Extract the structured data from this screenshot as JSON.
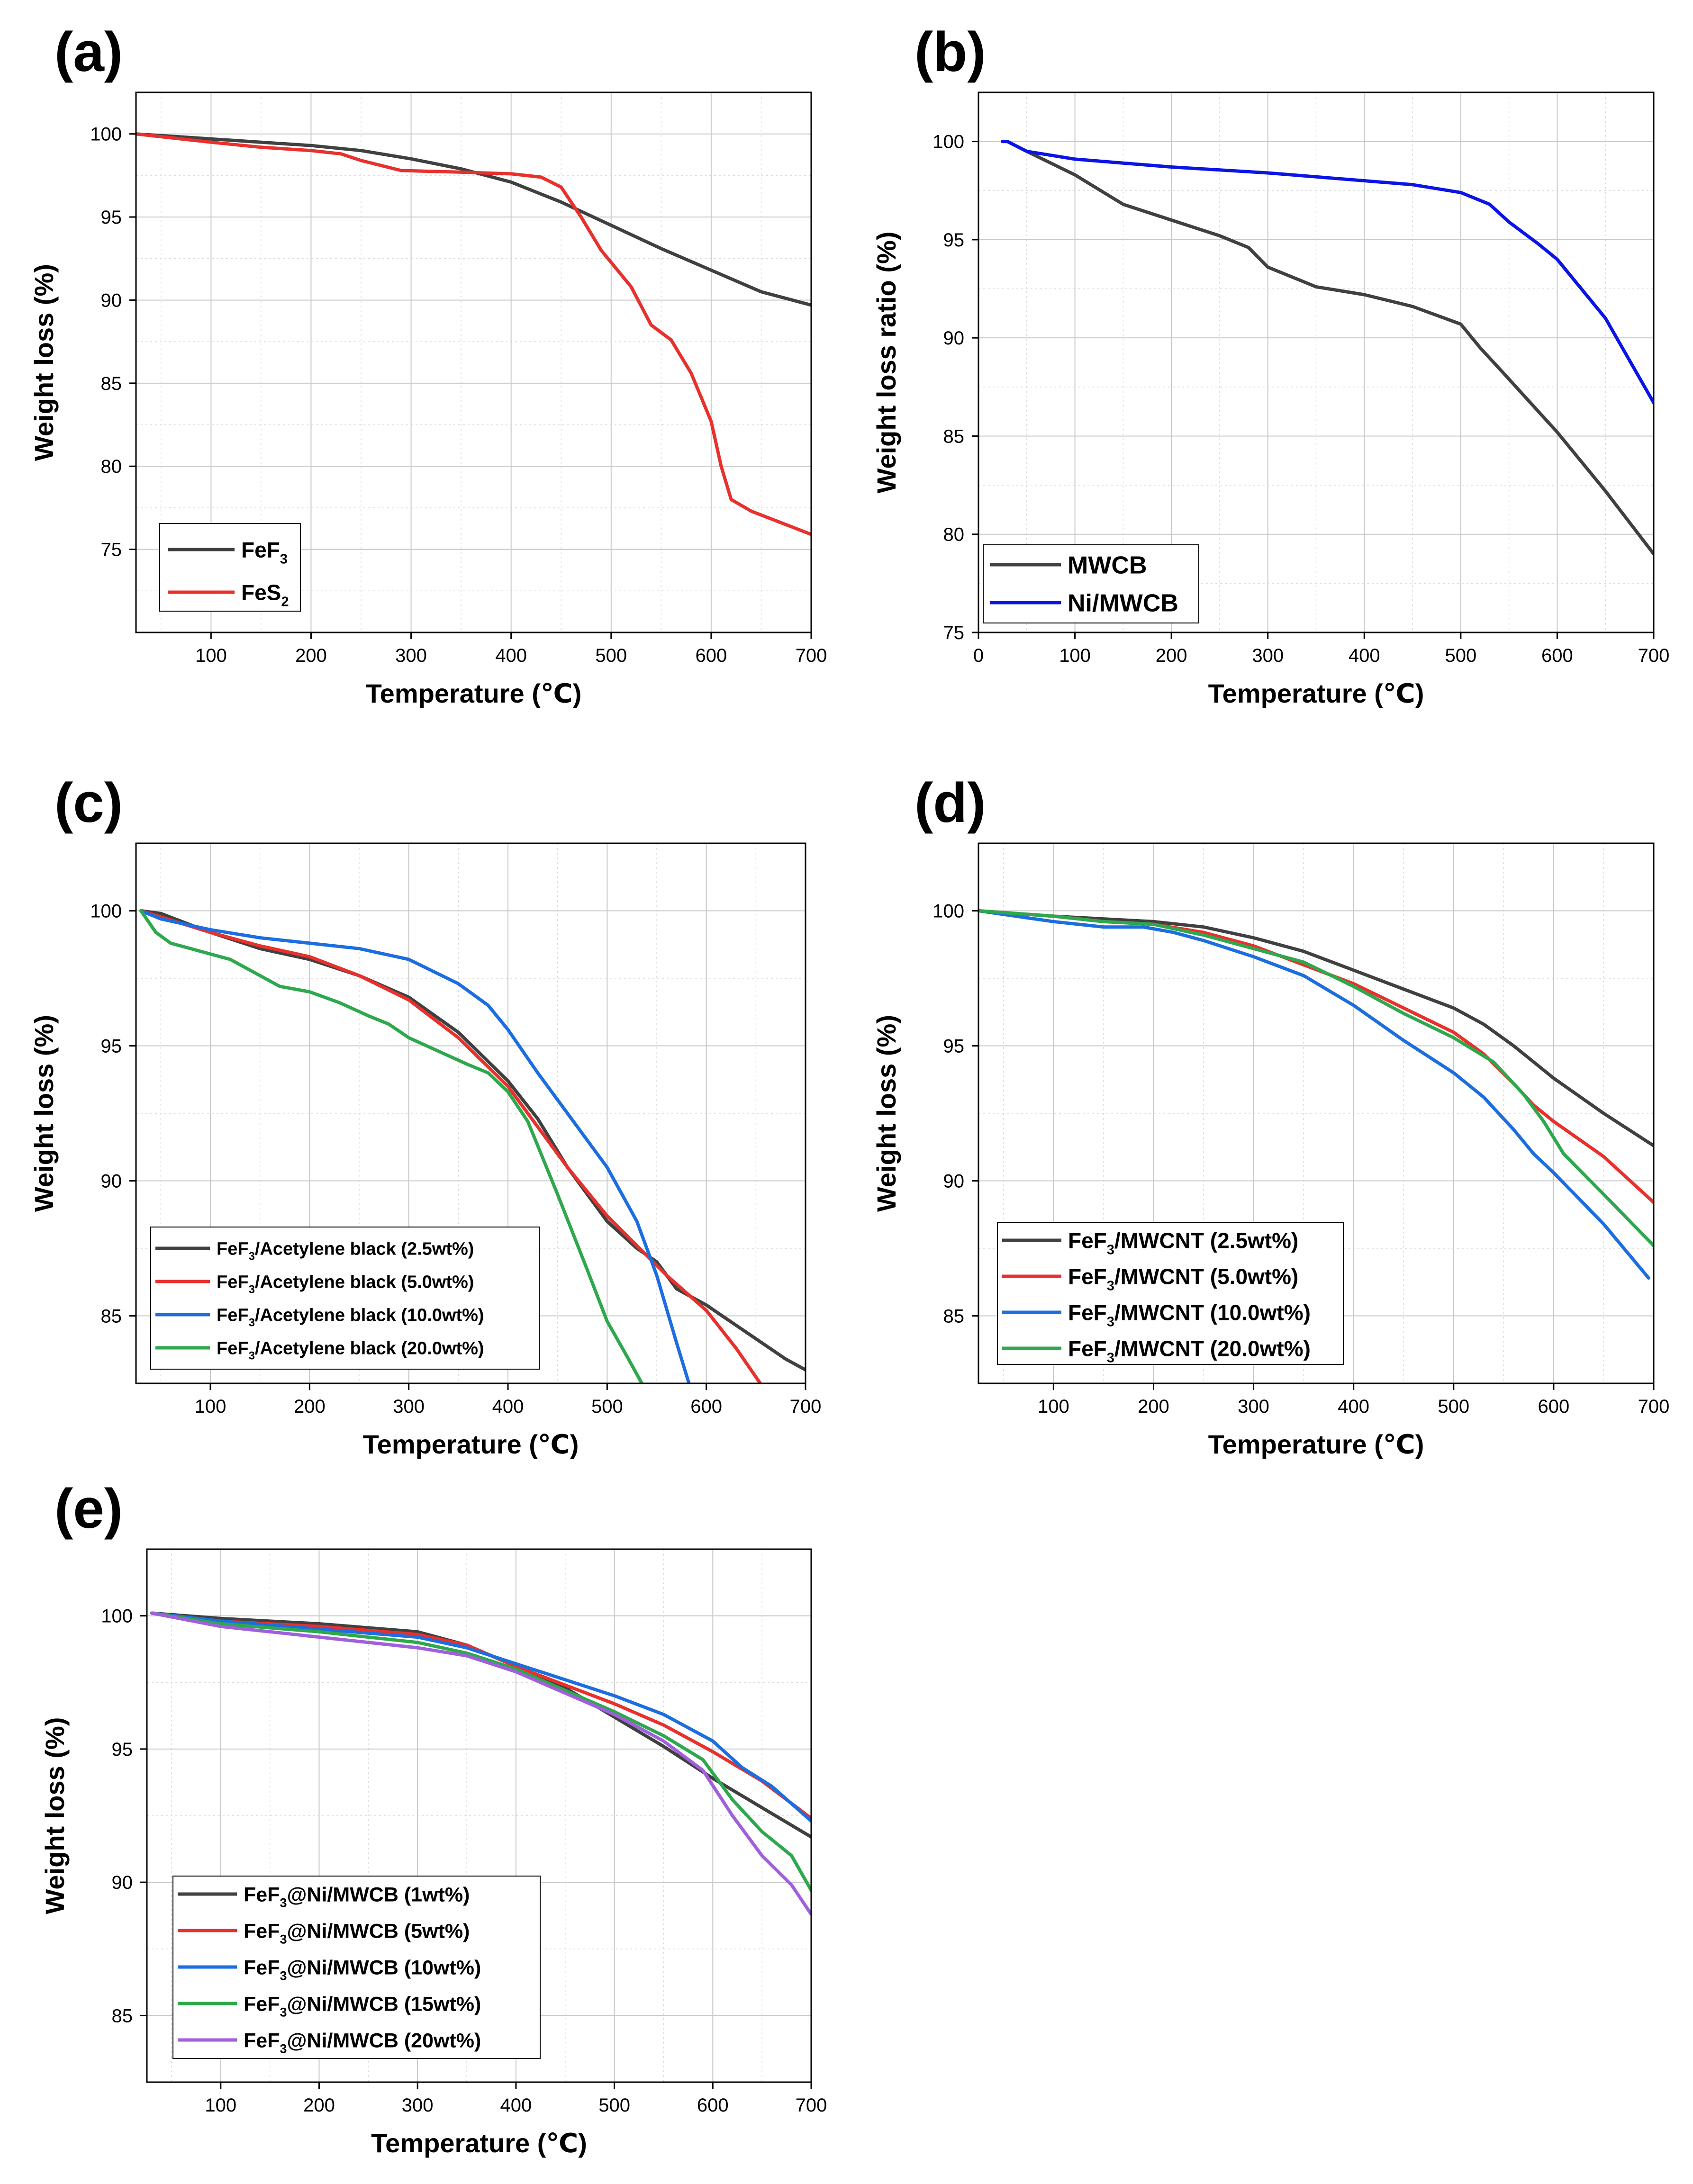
{
  "chart_data": [
    {
      "id": "a",
      "type": "line",
      "panel_label": "(a)",
      "xlabel": "Temperature (℃)",
      "ylabel": "Weight loss (%)",
      "xlim": [
        25,
        700
      ],
      "ylim": [
        70,
        102.5
      ],
      "xticks": [
        100,
        200,
        300,
        400,
        500,
        600,
        700
      ],
      "yticks": [
        75,
        80,
        85,
        90,
        95,
        100
      ],
      "grid": true,
      "legend_position": "bottom-left",
      "series": [
        {
          "name": "FeF3",
          "label_base": "FeF",
          "label_sub": "3",
          "label_tail": "",
          "color": "#404040",
          "x": [
            25,
            100,
            200,
            250,
            300,
            350,
            400,
            450,
            500,
            550,
            600,
            650,
            700
          ],
          "y": [
            100,
            99.7,
            99.3,
            99.0,
            98.5,
            97.9,
            97.1,
            95.9,
            94.5,
            93.1,
            91.8,
            90.5,
            89.7
          ]
        },
        {
          "name": "FeS2",
          "label_base": "FeS",
          "label_sub": "2",
          "label_tail": "",
          "color": "#e8302c",
          "x": [
            25,
            100,
            150,
            200,
            230,
            250,
            290,
            350,
            400,
            430,
            450,
            470,
            490,
            520,
            540,
            560,
            580,
            600,
            610,
            620,
            640,
            670,
            700
          ],
          "y": [
            100,
            99.5,
            99.2,
            99.0,
            98.8,
            98.4,
            97.8,
            97.7,
            97.6,
            97.4,
            96.8,
            95.0,
            93.0,
            90.8,
            88.5,
            87.6,
            85.6,
            82.7,
            80.0,
            78.0,
            77.3,
            76.6,
            75.9
          ]
        }
      ]
    },
    {
      "id": "b",
      "type": "line",
      "panel_label": "(b)",
      "xlabel": "Temperature (℃)",
      "ylabel": "Weight loss ratio (%)",
      "xlim": [
        0,
        700
      ],
      "ylim": [
        75,
        102.5
      ],
      "xticks": [
        0,
        100,
        200,
        300,
        400,
        500,
        600,
        700
      ],
      "yticks": [
        75,
        80,
        85,
        90,
        95,
        100
      ],
      "grid": true,
      "legend_position": "bottom-left",
      "series": [
        {
          "name": "MWCB",
          "label_base": "MWCB",
          "label_sub": "",
          "label_tail": "",
          "color": "#404040",
          "x": [
            25,
            30,
            50,
            100,
            150,
            200,
            250,
            280,
            300,
            350,
            400,
            450,
            500,
            520,
            550,
            600,
            650,
            700
          ],
          "y": [
            100,
            100,
            99.5,
            98.3,
            96.8,
            96.0,
            95.2,
            94.6,
            93.6,
            92.6,
            92.2,
            91.6,
            90.7,
            89.5,
            87.9,
            85.2,
            82.2,
            79.0
          ]
        },
        {
          "name": "Ni/MWCB",
          "label_base": "Ni/MWCB",
          "label_sub": "",
          "label_tail": "",
          "color": "#0a14e6",
          "x": [
            25,
            30,
            50,
            100,
            150,
            200,
            300,
            400,
            450,
            500,
            530,
            550,
            580,
            600,
            650,
            700
          ],
          "y": [
            100,
            100,
            99.5,
            99.1,
            98.9,
            98.7,
            98.4,
            98.0,
            97.8,
            97.4,
            96.8,
            95.9,
            94.8,
            94.0,
            91.0,
            86.7
          ]
        }
      ]
    },
    {
      "id": "c",
      "type": "line",
      "panel_label": "(c)",
      "xlabel": "Temperature (℃)",
      "ylabel": "Weight loss (%)",
      "xlim": [
        25,
        700
      ],
      "ylim": [
        82.5,
        102.5
      ],
      "xticks": [
        100,
        200,
        300,
        400,
        500,
        600,
        700
      ],
      "yticks": [
        85,
        90,
        95,
        100
      ],
      "grid": true,
      "legend_position": "bottom-left",
      "series": [
        {
          "name": "FeF3/Acetylene black (2.5wt%)",
          "label_base": "FeF",
          "label_sub": "3",
          "label_tail": "/Acetylene black (2.5wt%)",
          "color": "#404040",
          "x": [
            30,
            50,
            100,
            150,
            200,
            250,
            300,
            350,
            400,
            430,
            460,
            480,
            500,
            530,
            550,
            570,
            600,
            620,
            640,
            660,
            680,
            700
          ],
          "y": [
            100,
            99.9,
            99.2,
            98.6,
            98.2,
            97.6,
            96.8,
            95.5,
            93.7,
            92.3,
            90.5,
            89.5,
            88.5,
            87.5,
            87.0,
            86.0,
            85.4,
            84.9,
            84.4,
            83.9,
            83.4,
            83.0
          ]
        },
        {
          "name": "FeF3/Acetylene black (5.0wt%)",
          "label_base": "FeF",
          "label_sub": "3",
          "label_tail": "/Acetylene black (5.0wt%)",
          "color": "#e8302c",
          "x": [
            30,
            100,
            150,
            200,
            250,
            300,
            350,
            400,
            430,
            460,
            480,
            500,
            530,
            560,
            600,
            630,
            660
          ],
          "y": [
            100,
            99.2,
            98.7,
            98.3,
            97.6,
            96.7,
            95.3,
            93.5,
            92.0,
            90.5,
            89.6,
            88.7,
            87.6,
            86.5,
            85.2,
            83.8,
            82.2
          ]
        },
        {
          "name": "FeF3/Acetylene black (10.0wt%)",
          "label_base": "FeF",
          "label_sub": "3",
          "label_tail": "/Acetylene black (10.0wt%)",
          "color": "#1c6ee0",
          "x": [
            30,
            50,
            100,
            150,
            200,
            250,
            300,
            350,
            380,
            400,
            430,
            460,
            500,
            530,
            550,
            570,
            585
          ],
          "y": [
            100,
            99.7,
            99.3,
            99.0,
            98.8,
            98.6,
            98.2,
            97.3,
            96.5,
            95.6,
            94.0,
            92.5,
            90.5,
            88.5,
            86.5,
            84.0,
            82.2
          ]
        },
        {
          "name": "FeF3/Acetylene black (20.0wt%)",
          "label_base": "FeF",
          "label_sub": "3",
          "label_tail": "/Acetylene black (20.0wt%)",
          "color": "#2ea84d",
          "x": [
            30,
            45,
            60,
            80,
            100,
            120,
            150,
            170,
            200,
            230,
            260,
            280,
            300,
            330,
            360,
            380,
            400,
            420,
            450,
            480,
            500,
            520,
            535
          ],
          "y": [
            100,
            99.2,
            98.8,
            98.6,
            98.4,
            98.2,
            97.6,
            97.2,
            97.0,
            96.6,
            96.1,
            95.8,
            95.3,
            94.8,
            94.3,
            94.0,
            93.3,
            92.2,
            89.5,
            86.7,
            84.8,
            83.5,
            82.5
          ]
        }
      ]
    },
    {
      "id": "d",
      "type": "line",
      "panel_label": "(d)",
      "xlabel": "Temperature (℃)",
      "ylabel": "Weight loss (%)",
      "xlim": [
        25,
        700
      ],
      "ylim": [
        82.5,
        102.5
      ],
      "xticks": [
        100,
        200,
        300,
        400,
        500,
        600,
        700
      ],
      "yticks": [
        85,
        90,
        95,
        100
      ],
      "grid": true,
      "legend_position": "bottom-left",
      "series": [
        {
          "name": "FeF3/MWCNT (2.5wt%)",
          "label_base": "FeF",
          "label_sub": "3",
          "label_tail": "/MWCNT (2.5wt%)",
          "color": "#404040",
          "x": [
            25,
            100,
            150,
            200,
            250,
            300,
            350,
            400,
            450,
            500,
            530,
            560,
            580,
            600,
            650,
            700
          ],
          "y": [
            100,
            99.8,
            99.7,
            99.6,
            99.4,
            99.0,
            98.5,
            97.8,
            97.1,
            96.4,
            95.8,
            95.0,
            94.4,
            93.8,
            92.5,
            91.3
          ]
        },
        {
          "name": "FeF3/MWCNT (5.0wt%)",
          "label_base": "FeF",
          "label_sub": "3",
          "label_tail": "/MWCNT (5.0wt%)",
          "color": "#e8302c",
          "x": [
            25,
            100,
            150,
            200,
            250,
            300,
            350,
            400,
            450,
            500,
            530,
            560,
            580,
            600,
            650,
            700
          ],
          "y": [
            100,
            99.8,
            99.6,
            99.5,
            99.2,
            98.7,
            98.0,
            97.3,
            96.4,
            95.5,
            94.7,
            93.6,
            92.8,
            92.2,
            90.9,
            89.2
          ]
        },
        {
          "name": "FeF3/MWCNT (10.0wt%)",
          "label_base": "FeF",
          "label_sub": "3",
          "label_tail": "/MWCNT (10.0wt%)",
          "color": "#1c6ee0",
          "x": [
            25,
            100,
            150,
            190,
            220,
            250,
            300,
            350,
            400,
            450,
            500,
            530,
            560,
            580,
            600,
            650,
            695
          ],
          "y": [
            100,
            99.6,
            99.4,
            99.4,
            99.2,
            98.9,
            98.3,
            97.6,
            96.5,
            95.2,
            94.0,
            93.1,
            91.9,
            91.0,
            90.3,
            88.4,
            86.4
          ]
        },
        {
          "name": "FeF3/MWCNT (20.0wt%)",
          "label_base": "FeF",
          "label_sub": "3",
          "label_tail": "/MWCNT (20.0wt%)",
          "color": "#2ea84d",
          "x": [
            25,
            100,
            150,
            200,
            250,
            300,
            350,
            400,
            450,
            500,
            540,
            570,
            590,
            610,
            650,
            700
          ],
          "y": [
            100,
            99.8,
            99.6,
            99.5,
            99.1,
            98.6,
            98.1,
            97.2,
            96.2,
            95.3,
            94.4,
            93.2,
            92.2,
            91.0,
            89.5,
            87.6
          ]
        }
      ]
    },
    {
      "id": "e",
      "type": "line",
      "panel_label": "(e)",
      "xlabel": "Temperature (℃)",
      "ylabel": "Weight loss (%)",
      "xlim": [
        25,
        700
      ],
      "ylim": [
        82.5,
        102.5
      ],
      "xticks": [
        100,
        200,
        300,
        400,
        500,
        600,
        700
      ],
      "yticks": [
        85,
        90,
        95,
        100
      ],
      "grid": true,
      "legend_position": "bottom-left",
      "series": [
        {
          "name": "FeF3@Ni/MWCB (1wt%)",
          "label_base": "FeF",
          "label_sub": "3",
          "label_tail": "@Ni/MWCB (1wt%)",
          "color": "#404040",
          "x": [
            30,
            100,
            200,
            300,
            350,
            400,
            450,
            500,
            550,
            600,
            650,
            700
          ],
          "y": [
            100.1,
            99.9,
            99.7,
            99.4,
            98.9,
            98.1,
            97.3,
            96.2,
            95.1,
            93.9,
            92.8,
            91.7
          ]
        },
        {
          "name": "FeF3@Ni/MWCB (5wt%)",
          "label_base": "FeF",
          "label_sub": "3",
          "label_tail": "@Ni/MWCB (5wt%)",
          "color": "#e8302c",
          "x": [
            30,
            100,
            200,
            300,
            350,
            400,
            450,
            500,
            550,
            600,
            650,
            700
          ],
          "y": [
            100.1,
            99.8,
            99.6,
            99.3,
            98.9,
            98.1,
            97.4,
            96.7,
            95.9,
            94.9,
            93.8,
            92.4
          ]
        },
        {
          "name": "FeF3@Ni/MWCB (10wt%)",
          "label_base": "FeF",
          "label_sub": "3",
          "label_tail": "@Ni/MWCB (10wt%)",
          "color": "#1c6ee0",
          "x": [
            30,
            100,
            200,
            300,
            350,
            400,
            450,
            500,
            550,
            600,
            630,
            660,
            700
          ],
          "y": [
            100.1,
            99.8,
            99.5,
            99.2,
            98.8,
            98.2,
            97.6,
            97.0,
            96.3,
            95.3,
            94.3,
            93.6,
            92.3
          ]
        },
        {
          "name": "FeF3@Ni/MWCB (15wt%)",
          "label_base": "FeF",
          "label_sub": "3",
          "label_tail": "@Ni/MWCB (15wt%)",
          "color": "#2ea84d",
          "x": [
            30,
            100,
            200,
            300,
            350,
            400,
            450,
            500,
            550,
            590,
            620,
            650,
            680,
            700
          ],
          "y": [
            100.1,
            99.7,
            99.4,
            99.0,
            98.6,
            98.0,
            97.2,
            96.4,
            95.5,
            94.6,
            93.1,
            91.9,
            91.0,
            89.7
          ]
        },
        {
          "name": "FeF3@Ni/MWCB (20wt%)",
          "label_base": "FeF",
          "label_sub": "3",
          "label_tail": "@Ni/MWCB (20wt%)",
          "color": "#a060dc",
          "x": [
            30,
            100,
            200,
            300,
            350,
            400,
            450,
            500,
            550,
            590,
            620,
            650,
            680,
            700
          ],
          "y": [
            100.1,
            99.6,
            99.2,
            98.8,
            98.5,
            97.9,
            97.1,
            96.3,
            95.3,
            94.2,
            92.5,
            91.0,
            89.9,
            88.8
          ]
        }
      ]
    }
  ]
}
